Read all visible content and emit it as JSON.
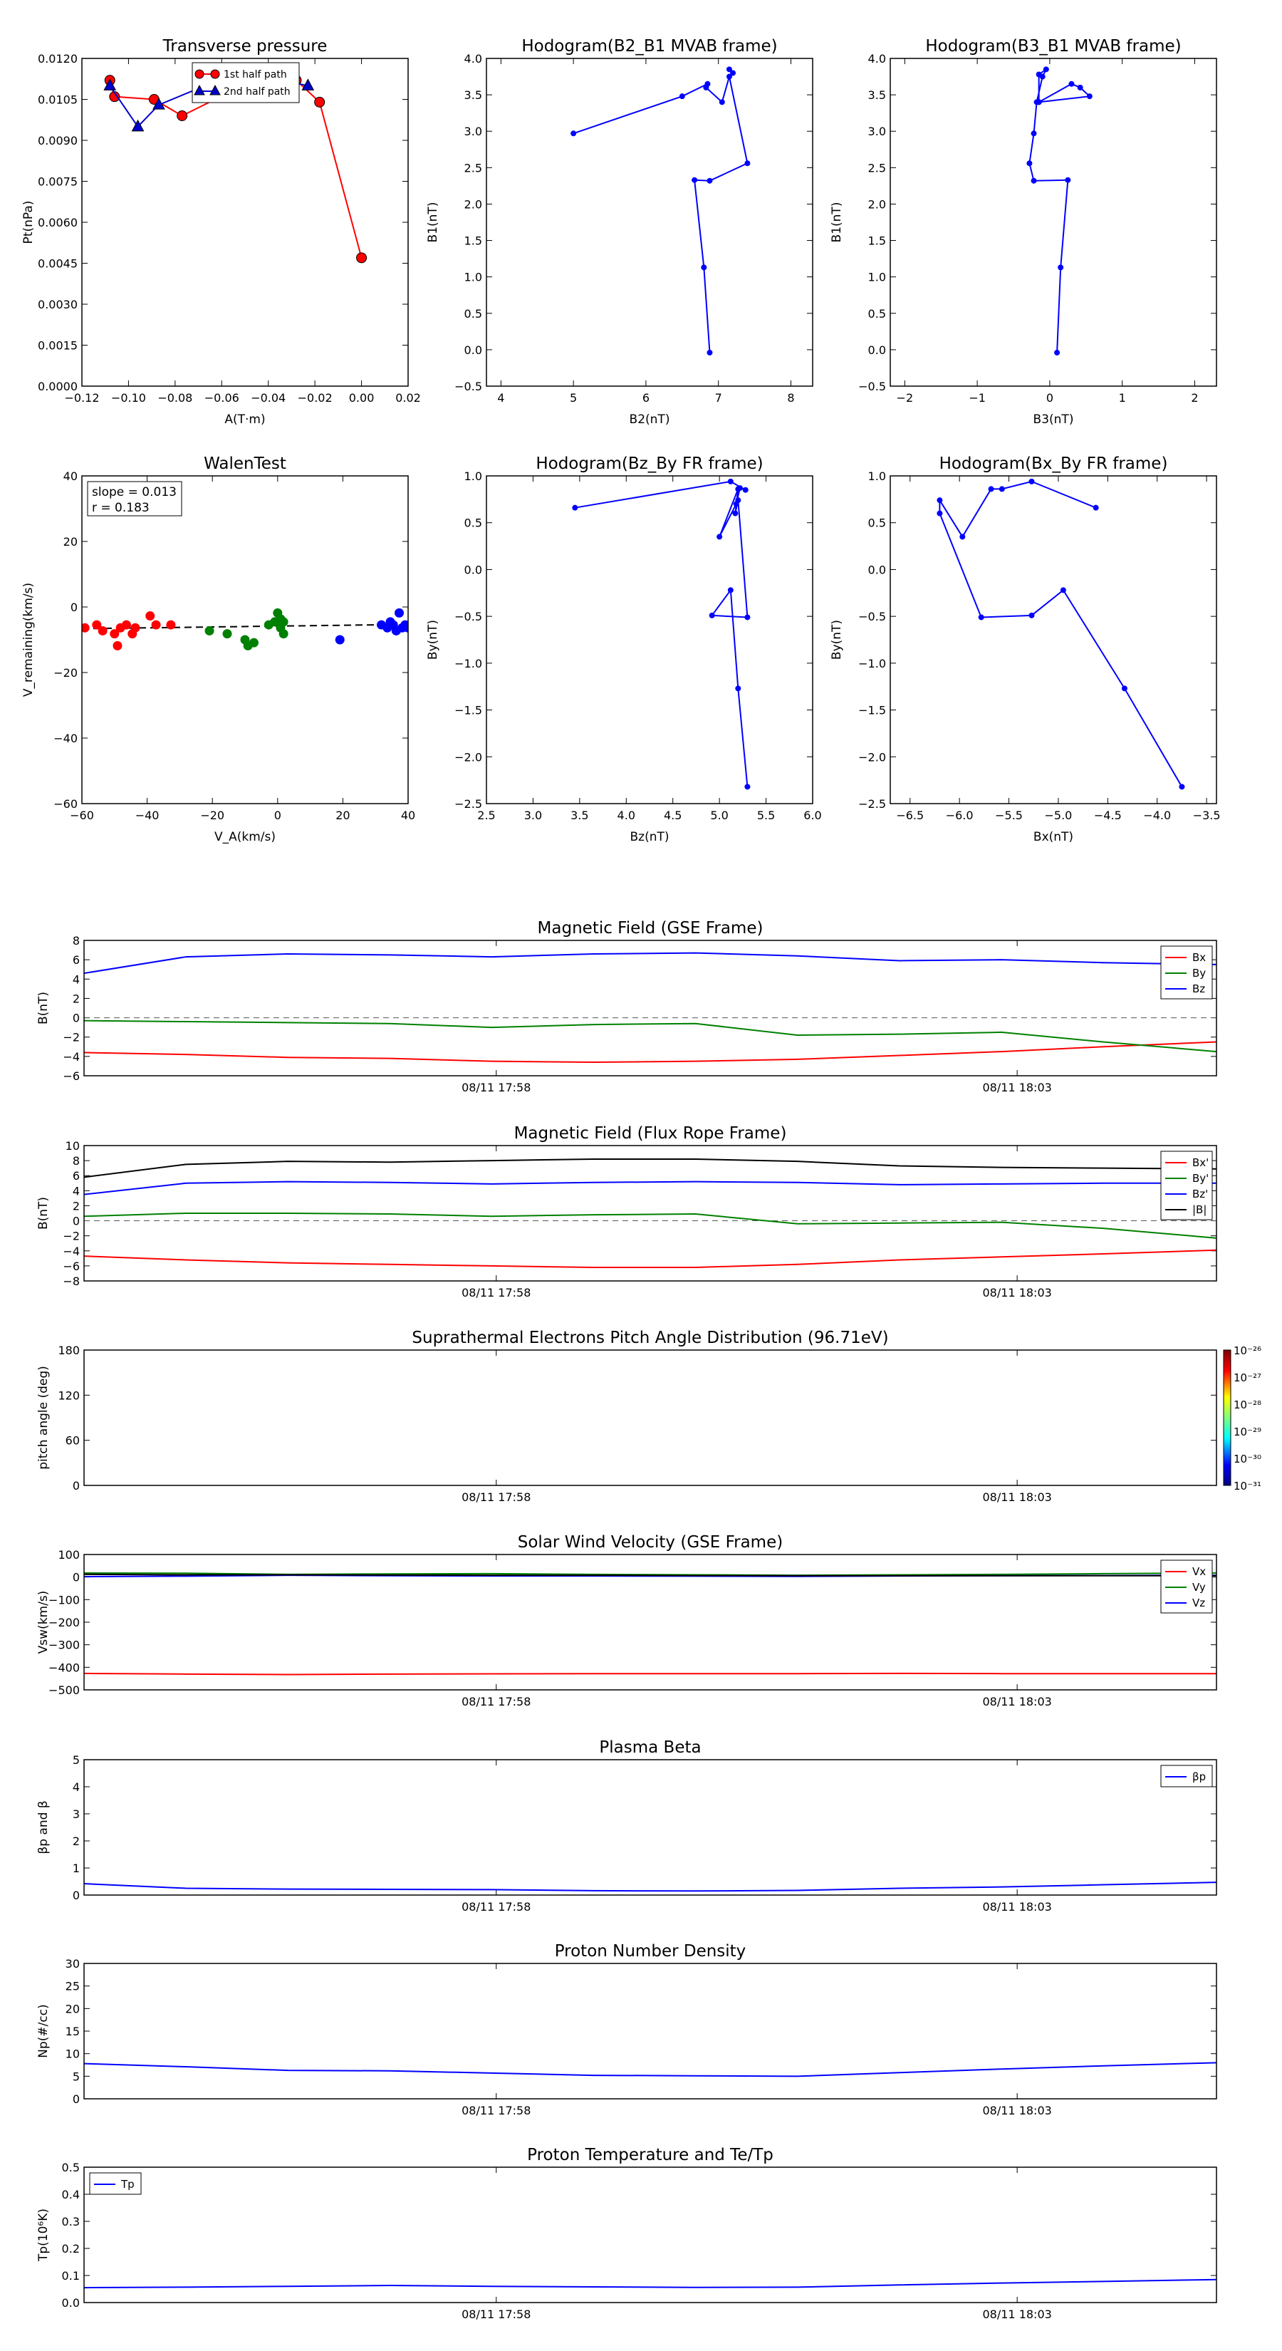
{
  "chart_data": [
    {
      "id": "p1",
      "type": "scatter",
      "title": "Transverse pressure",
      "xlabel": "A(T·m)",
      "ylabel": "Pt(nPa)",
      "xlim": [
        -0.12,
        0.02
      ],
      "ylim": [
        0,
        0.012
      ],
      "xticks": [
        "−0.12",
        "−0.10",
        "−0.08",
        "−0.06",
        "−0.04",
        "−0.02",
        "0.00",
        "0.02"
      ],
      "yticks": [
        "0.0000",
        "0.0015",
        "0.0030",
        "0.0045",
        "0.0060",
        "0.0075",
        "0.0090",
        "0.0105",
        "0.0120"
      ],
      "legend": "top-center",
      "series": [
        {
          "name": "1st half path",
          "color": "#ff0000",
          "marker": "circle",
          "x": [
            -0.108,
            -0.106,
            -0.089,
            -0.077,
            -0.051,
            -0.04,
            -0.035,
            -0.028,
            -0.018,
            0.0
          ],
          "y": [
            0.0112,
            0.0106,
            0.0105,
            0.0099,
            0.011,
            0.0113,
            0.0114,
            0.0112,
            0.0104,
            0.0047
          ]
        },
        {
          "name": "2nd half path",
          "color": "#0000cc",
          "marker": "triangle",
          "x": [
            -0.108,
            -0.096,
            -0.087,
            -0.07,
            -0.052,
            -0.04,
            -0.023
          ],
          "y": [
            0.011,
            0.0095,
            0.0103,
            0.0109,
            0.0114,
            0.0113,
            0.011
          ]
        }
      ]
    },
    {
      "id": "p2",
      "type": "line",
      "title": "Hodogram(B2_B1 MVAB frame)",
      "xlabel": "B2(nT)",
      "ylabel": "B1(nT)",
      "xlim": [
        3.8,
        8.3
      ],
      "ylim": [
        -0.5,
        4.0
      ],
      "xticks": [
        "4",
        "5",
        "6",
        "7",
        "8"
      ],
      "yticks": [
        "−0.5",
        "0.0",
        "0.5",
        "1.0",
        "1.5",
        "2.0",
        "2.5",
        "3.0",
        "3.5",
        "4.0"
      ],
      "series": [
        {
          "color": "#0000ff",
          "x": [
            6.88,
            6.8,
            6.67,
            6.88,
            7.4,
            7.15,
            7.05,
            6.83,
            6.85,
            6.5,
            5.0
          ],
          "y": [
            -0.04,
            1.13,
            2.33,
            2.32,
            2.56,
            3.75,
            3.4,
            3.6,
            3.65,
            3.48,
            2.97
          ]
        },
        {
          "color": "#0000ff",
          "x": [
            7.15,
            7.2
          ],
          "y": [
            3.85,
            3.8
          ]
        }
      ]
    },
    {
      "id": "p3",
      "type": "line",
      "title": "Hodogram(B3_B1 MVAB frame)",
      "xlabel": "B3(nT)",
      "ylabel": "B1(nT)",
      "xlim": [
        -2.2,
        2.3
      ],
      "ylim": [
        -0.5,
        4.0
      ],
      "xticks": [
        "−2",
        "−1",
        "0",
        "1",
        "2"
      ],
      "yticks": [
        "−0.5",
        "0.0",
        "0.5",
        "1.0",
        "1.5",
        "2.0",
        "2.5",
        "3.0",
        "3.5",
        "4.0"
      ],
      "series": [
        {
          "color": "#0000ff",
          "x": [
            0.1,
            0.15,
            0.25,
            -0.22,
            -0.28,
            -0.22,
            -0.18,
            -0.1,
            -0.05,
            -0.15,
            -0.15,
            0.3,
            0.42,
            0.55,
            -0.15
          ],
          "y": [
            -0.04,
            1.13,
            2.33,
            2.32,
            2.56,
            2.97,
            3.4,
            3.75,
            3.85,
            3.78,
            3.4,
            3.65,
            3.6,
            3.48,
            3.4
          ]
        }
      ]
    },
    {
      "id": "p4",
      "type": "scatter",
      "title": "WalenTest",
      "xlabel": "V_A(km/s)",
      "ylabel": "V_remaining(km/s)",
      "xlim": [
        -60,
        50
      ],
      "ylim": [
        -60,
        50
      ],
      "xticks": [
        "−60",
        "−40",
        "−20",
        "0",
        "20",
        "40"
      ],
      "yticks": [
        "−60",
        "−40",
        "−20",
        "0",
        "20",
        "40"
      ],
      "annotation": [
        "slope = 0.013",
        "r = 0.183"
      ],
      "fit": {
        "slope": 0.013,
        "intercept": -0.5
      },
      "series": [
        {
          "color": "#ff0000",
          "x": [
            -59,
            -55,
            -53,
            -49,
            -48,
            -47,
            -45,
            -43,
            -42,
            -37,
            -35,
            -30
          ],
          "y": [
            -1,
            0,
            -2,
            -3,
            -7,
            -1,
            0,
            -3,
            -1,
            3,
            0,
            0
          ]
        },
        {
          "color": "#008000",
          "x": [
            -17,
            -11,
            -5,
            -4,
            -2,
            3,
            5,
            6,
            7,
            7,
            8,
            8
          ],
          "y": [
            -2,
            -3,
            -5,
            -7,
            -6,
            0,
            1,
            4,
            2,
            -1,
            1,
            -3
          ]
        },
        {
          "color": "#0000ff",
          "x": [
            27,
            41,
            43,
            44,
            44,
            45,
            46,
            47,
            48,
            49,
            50
          ],
          "y": [
            -5,
            0,
            -1,
            1,
            0,
            0,
            -2,
            4,
            -1,
            0,
            -1
          ]
        }
      ]
    },
    {
      "id": "p5",
      "type": "line",
      "title": "Hodogram(Bz_By FR frame)",
      "xlabel": "Bz(nT)",
      "ylabel": "By(nT)",
      "xlim": [
        2.5,
        6.0
      ],
      "ylim": [
        -2.5,
        1.0
      ],
      "xticks": [
        "2.5",
        "3.0",
        "3.5",
        "4.0",
        "4.5",
        "5.0",
        "5.5",
        "6.0"
      ],
      "yticks": [
        "−2.5",
        "−2.0",
        "−1.5",
        "−1.0",
        "−0.5",
        "0.0",
        "0.5",
        "1.0"
      ],
      "series": [
        {
          "color": "#0000ff",
          "x": [
            5.3,
            5.2,
            5.12,
            4.92,
            5.3,
            5.2,
            5.17,
            5.2,
            5.0,
            5.18,
            5.22,
            5.28,
            5.12,
            3.45
          ],
          "y": [
            -2.32,
            -1.27,
            -0.22,
            -0.49,
            -0.51,
            0.74,
            0.6,
            0.86,
            0.35,
            0.7,
            0.87,
            0.85,
            0.94,
            0.66
          ]
        }
      ]
    },
    {
      "id": "p6",
      "type": "line",
      "title": "Hodogram(Bx_By FR frame)",
      "xlabel": "Bx(nT)",
      "ylabel": "By(nT)",
      "xlim": [
        -6.7,
        -3.4
      ],
      "ylim": [
        -2.5,
        1.0
      ],
      "xticks": [
        "−6.5",
        "−6.0",
        "−5.5",
        "−5.0",
        "−4.5",
        "−4.0",
        "−3.5"
      ],
      "yticks": [
        "−2.5",
        "−2.0",
        "−1.5",
        "−1.0",
        "−0.5",
        "0.0",
        "0.5",
        "1.0"
      ],
      "series": [
        {
          "color": "#0000ff",
          "x": [
            -3.75,
            -4.33,
            -4.95,
            -5.27,
            -5.78,
            -6.2,
            -6.2,
            -5.97,
            -5.68,
            -5.57,
            -5.27,
            -4.62
          ],
          "y": [
            -2.32,
            -1.27,
            -0.22,
            -0.49,
            -0.51,
            0.6,
            0.74,
            0.35,
            0.86,
            0.86,
            0.94,
            0.66
          ]
        }
      ]
    },
    {
      "id": "ts1",
      "type": "line",
      "title": "Magnetic Field (GSE Frame)",
      "ylabel": "B(nT)",
      "xlim": [
        0,
        100
      ],
      "ylim": [
        -6,
        8
      ],
      "yticks": [
        "−6",
        "−4",
        "−2",
        "0",
        "2",
        "4",
        "6",
        "8"
      ],
      "xticks_at": [
        36.4,
        82.4
      ],
      "xticks": [
        "08/11 17:58",
        "08/11 18:03"
      ],
      "zero_line": true,
      "legend": "top-right",
      "x": [
        0,
        9,
        18,
        27,
        36,
        45,
        54,
        63,
        72,
        81,
        90,
        100
      ],
      "series": [
        {
          "name": "Bx",
          "color": "#ff0000",
          "values": [
            -3.6,
            -3.8,
            -4.1,
            -4.2,
            -4.5,
            -4.6,
            -4.5,
            -4.3,
            -3.9,
            -3.5,
            -3.0,
            -2.5
          ]
        },
        {
          "name": "By",
          "color": "#008000",
          "values": [
            -0.3,
            -0.4,
            -0.5,
            -0.6,
            -1.0,
            -0.7,
            -0.6,
            -1.8,
            -1.7,
            -1.5,
            -2.5,
            -3.5
          ]
        },
        {
          "name": "Bz",
          "color": "#0000ff",
          "values": [
            4.6,
            6.3,
            6.6,
            6.5,
            6.3,
            6.6,
            6.7,
            6.4,
            5.9,
            6.0,
            5.7,
            5.5
          ]
        }
      ]
    },
    {
      "id": "ts2",
      "type": "line",
      "title": "Magnetic Field (Flux Rope Frame)",
      "ylabel": "B(nT)",
      "xlim": [
        0,
        100
      ],
      "ylim": [
        -8,
        10
      ],
      "yticks": [
        "−8",
        "−6",
        "−4",
        "−2",
        "0",
        "2",
        "4",
        "6",
        "8",
        "10"
      ],
      "xticks_at": [
        36.4,
        82.4
      ],
      "xticks": [
        "08/11 17:58",
        "08/11 18:03"
      ],
      "zero_line": true,
      "legend": "top-right",
      "x": [
        0,
        9,
        18,
        27,
        36,
        45,
        54,
        63,
        72,
        81,
        90,
        100
      ],
      "series": [
        {
          "name": "Bx'",
          "color": "#ff0000",
          "values": [
            -4.7,
            -5.2,
            -5.6,
            -5.8,
            -6.0,
            -6.2,
            -6.2,
            -5.8,
            -5.2,
            -4.8,
            -4.4,
            -3.9
          ]
        },
        {
          "name": "By'",
          "color": "#008000",
          "values": [
            0.6,
            1.0,
            1.0,
            0.9,
            0.6,
            0.8,
            0.9,
            -0.4,
            -0.3,
            -0.2,
            -1.0,
            -2.3
          ]
        },
        {
          "name": "Bz'",
          "color": "#0000ff",
          "values": [
            3.5,
            5.0,
            5.2,
            5.1,
            4.9,
            5.1,
            5.2,
            5.1,
            4.8,
            4.9,
            5.0,
            5.0
          ]
        },
        {
          "name": "|B|",
          "color": "#000000",
          "values": [
            5.8,
            7.5,
            7.9,
            7.8,
            8.0,
            8.2,
            8.2,
            7.9,
            7.3,
            7.1,
            7.0,
            6.9
          ]
        }
      ]
    },
    {
      "id": "ts3",
      "type": "heatmap",
      "title": "Suprathermal Electrons Pitch Angle Distribution (96.71eV)",
      "ylabel": "pitch angle (deg)",
      "xlim": [
        0,
        100
      ],
      "ylim": [
        0,
        180
      ],
      "yticks": [
        "0",
        "60",
        "120",
        "180"
      ],
      "xticks_at": [
        36.4,
        82.4
      ],
      "xticks": [
        "08/11 17:58",
        "08/11 18:03"
      ],
      "colorbar_ticks": [
        "10⁻²⁶",
        "10⁻²⁷",
        "10⁻²⁸",
        "10⁻²⁹",
        "10⁻³⁰",
        "10⁻³¹"
      ],
      "values": []
    },
    {
      "id": "ts4",
      "type": "line",
      "title": "Solar Wind Velocity (GSE Frame)",
      "ylabel": "Vsw(km/s)",
      "xlim": [
        0,
        100
      ],
      "ylim": [
        -500,
        100
      ],
      "yticks": [
        "−500",
        "−400",
        "−300",
        "−200",
        "−100",
        "0",
        "100"
      ],
      "xticks_at": [
        36.4,
        82.4
      ],
      "xticks": [
        "08/11 17:58",
        "08/11 18:03"
      ],
      "legend": "top-right",
      "x": [
        0,
        9,
        18,
        27,
        36,
        45,
        54,
        63,
        72,
        81,
        90,
        100
      ],
      "series": [
        {
          "name": "Vx",
          "color": "#ff0000",
          "values": [
            -427,
            -430,
            -432,
            -430,
            -429,
            -428,
            -428,
            -428,
            -427,
            -428,
            -428,
            -428
          ]
        },
        {
          "name": "Vy",
          "color": "#008000",
          "values": [
            18,
            17,
            12,
            14,
            15,
            12,
            10,
            8,
            10,
            12,
            15,
            18
          ]
        },
        {
          "name": "Vz",
          "color": "#0000ff",
          "values": [
            2,
            4,
            8,
            6,
            5,
            5,
            4,
            3,
            5,
            6,
            7,
            8
          ]
        },
        {
          "name": "",
          "color": "#000000",
          "values": [
            12,
            10,
            10,
            9,
            8,
            8,
            7,
            6,
            6,
            6,
            6,
            6
          ]
        }
      ]
    },
    {
      "id": "ts5",
      "type": "line",
      "title": "Plasma Beta",
      "ylabel": "βp and β",
      "xlim": [
        0,
        100
      ],
      "ylim": [
        0,
        5
      ],
      "yticks": [
        "0",
        "1",
        "2",
        "3",
        "4",
        "5"
      ],
      "xticks_at": [
        36.4,
        82.4
      ],
      "xticks": [
        "08/11 17:58",
        "08/11 18:03"
      ],
      "legend": "top-right",
      "x": [
        0,
        9,
        18,
        27,
        36,
        45,
        54,
        63,
        72,
        81,
        90,
        100
      ],
      "series": [
        {
          "name": "βp",
          "color": "#0000ff",
          "values": [
            0.42,
            0.25,
            0.22,
            0.21,
            0.2,
            0.16,
            0.15,
            0.17,
            0.25,
            0.3,
            0.38,
            0.47
          ]
        }
      ]
    },
    {
      "id": "ts6",
      "type": "line",
      "title": "Proton Number Density",
      "ylabel": "Np(#/cc)",
      "xlim": [
        0,
        100
      ],
      "ylim": [
        0,
        30
      ],
      "yticks": [
        "0",
        "5",
        "10",
        "15",
        "20",
        "25",
        "30"
      ],
      "xticks_at": [
        36.4,
        82.4
      ],
      "xticks": [
        "08/11 17:58",
        "08/11 18:03"
      ],
      "x": [
        0,
        9,
        18,
        27,
        36,
        45,
        54,
        63,
        72,
        81,
        90,
        100
      ],
      "series": [
        {
          "name": "",
          "color": "#0000ff",
          "values": [
            7.8,
            7.1,
            6.3,
            6.2,
            5.7,
            5.2,
            5.1,
            5.0,
            5.8,
            6.6,
            7.3,
            8.0
          ]
        }
      ]
    },
    {
      "id": "ts7",
      "type": "line",
      "title": "Proton Temperature and Te/Tp",
      "ylabel": "Tp(10⁶K)",
      "xlim": [
        0,
        100
      ],
      "ylim": [
        0,
        0.5
      ],
      "yticks": [
        "0.0",
        "0.1",
        "0.2",
        "0.3",
        "0.4",
        "0.5"
      ],
      "xticks_at": [
        36.4,
        82.4
      ],
      "xticks": [
        "08/11 17:58",
        "08/11 18:03"
      ],
      "legend": "top-left",
      "x": [
        0,
        9,
        18,
        27,
        36,
        45,
        54,
        63,
        72,
        81,
        90,
        100
      ],
      "series": [
        {
          "name": "Tp",
          "color": "#0000ff",
          "values": [
            0.055,
            0.057,
            0.06,
            0.063,
            0.06,
            0.058,
            0.056,
            0.057,
            0.065,
            0.072,
            0.078,
            0.085
          ]
        }
      ]
    }
  ]
}
